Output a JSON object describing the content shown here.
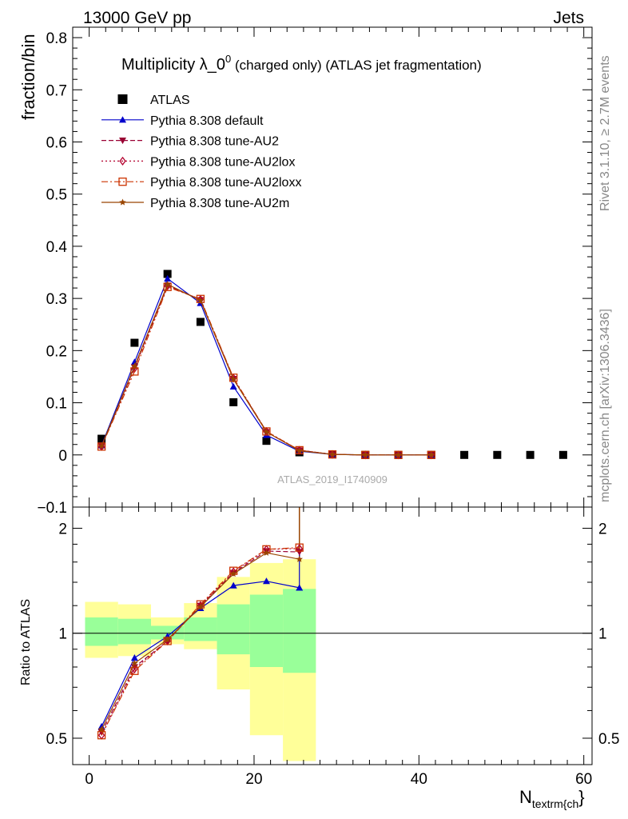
{
  "header": {
    "left": "13000 GeV pp",
    "right": "Jets"
  },
  "side_labels": {
    "rivet": "Rivet 3.1.10, ≥ 2.7M events",
    "mcplots": "mcplots.cern.ch [arXiv:1306.3436]"
  },
  "chart_data": [
    {
      "type": "scatter",
      "title_main": "Multiplicity λ_0",
      "title_sup": "0",
      "title_rest": " (charged only) (ATLAS jet fragmentation)",
      "ylabel": "fraction/bin",
      "xlabel_main": "N",
      "xlabel_sub": "textrm{ch",
      "xlabel_end": "}",
      "watermark": "ATLAS_2019_I1740909",
      "xlim": [
        -2,
        61
      ],
      "ylim": [
        -0.1,
        0.82
      ],
      "yticks": [
        -0.1,
        0,
        0.1,
        0.2,
        0.3,
        0.4,
        0.5,
        0.6,
        0.7,
        0.8
      ],
      "ytick_labels": [
        "−0.1",
        "0",
        "0.1",
        "0.2",
        "0.3",
        "0.4",
        "0.5",
        "0.6",
        "0.7",
        "0.8"
      ],
      "grid": false,
      "legend_position": "top-left",
      "series": [
        {
          "name": "ATLAS",
          "color": "#000000",
          "marker": "square",
          "line": "none",
          "x": [
            1.5,
            5.5,
            9.5,
            13.5,
            17.5,
            21.5,
            25.5,
            29.5,
            33.5,
            37.5,
            41.5,
            45.5,
            49.5,
            53.5,
            57.5
          ],
          "y": [
            0.031,
            0.215,
            0.347,
            0.255,
            0.101,
            0.027,
            0.005,
            0.001,
            0.0,
            0.0,
            0.0,
            0.0,
            0.0,
            0.0,
            0.0
          ]
        },
        {
          "name": "Pythia 8.308 default",
          "color": "#0000cc",
          "marker": "triangle-up",
          "line": "solid",
          "x": [
            1.5,
            5.5,
            9.5,
            13.5,
            17.5,
            21.5,
            25.5,
            29.5,
            33.5,
            37.5,
            41.5
          ],
          "y": [
            0.018,
            0.178,
            0.338,
            0.291,
            0.131,
            0.038,
            0.007,
            0.001,
            0.0,
            0.0,
            0.0
          ]
        },
        {
          "name": "Pythia 8.308 tune-AU2",
          "color": "#990033",
          "marker": "triangle-down",
          "line": "dashed",
          "x": [
            1.5,
            5.5,
            9.5,
            13.5,
            17.5,
            21.5,
            25.5,
            29.5,
            33.5,
            37.5,
            41.5
          ],
          "y": [
            0.017,
            0.168,
            0.325,
            0.297,
            0.146,
            0.044,
            0.009,
            0.001,
            0.0,
            0.0,
            0.0
          ]
        },
        {
          "name": "Pythia 8.308 tune-AU2lox",
          "color": "#b3002d",
          "marker": "diamond-open",
          "line": "dotted",
          "x": [
            1.5,
            5.5,
            9.5,
            13.5,
            17.5,
            21.5,
            25.5,
            29.5,
            33.5,
            37.5,
            41.5
          ],
          "y": [
            0.016,
            0.166,
            0.324,
            0.298,
            0.147,
            0.045,
            0.009,
            0.001,
            0.0,
            0.0,
            0.0
          ]
        },
        {
          "name": "Pythia 8.308 tune-AU2loxx",
          "color": "#cc3300",
          "marker": "square-open",
          "line": "dashdot",
          "x": [
            1.5,
            5.5,
            9.5,
            13.5,
            17.5,
            21.5,
            25.5,
            29.5,
            33.5,
            37.5,
            41.5
          ],
          "y": [
            0.016,
            0.16,
            0.322,
            0.299,
            0.148,
            0.045,
            0.009,
            0.001,
            0.0,
            0.0,
            0.0
          ]
        },
        {
          "name": "Pythia 8.308 tune-AU2m",
          "color": "#994400",
          "marker": "star",
          "line": "solid",
          "x": [
            1.5,
            5.5,
            9.5,
            13.5,
            17.5,
            21.5,
            25.5,
            29.5,
            33.5,
            37.5,
            41.5
          ],
          "y": [
            0.017,
            0.17,
            0.327,
            0.296,
            0.145,
            0.044,
            0.008,
            0.001,
            0.0,
            0.0,
            0.0
          ]
        }
      ]
    },
    {
      "type": "line",
      "ylabel": "Ratio to ATLAS",
      "scale": "log",
      "xlim": [
        -2,
        61
      ],
      "ylim": [
        0.42,
        2.3
      ],
      "yticks": [
        0.5,
        1,
        2
      ],
      "ytick_labels": [
        "0.5",
        "1",
        "2"
      ],
      "xticks": [
        0,
        20,
        40,
        60
      ],
      "xtick_labels": [
        "0",
        "20",
        "40",
        "60"
      ],
      "reference_line": 1,
      "bands": {
        "edges": [
          -0.5,
          3.5,
          7.5,
          11.5,
          15.5,
          19.5,
          23.5,
          27.5
        ],
        "yellow_low": [
          0.85,
          0.86,
          0.93,
          0.9,
          0.69,
          0.51,
          0.43
        ],
        "yellow_high": [
          1.23,
          1.21,
          1.11,
          1.22,
          1.45,
          1.59,
          1.63
        ],
        "green_low": [
          0.92,
          0.93,
          0.96,
          0.95,
          0.87,
          0.8,
          0.77
        ],
        "green_high": [
          1.11,
          1.1,
          1.05,
          1.11,
          1.21,
          1.29,
          1.34
        ],
        "yellow_color": "#ffff99",
        "green_color": "#99ff99"
      },
      "series": [
        {
          "name": "Pythia 8.308 default",
          "color": "#0000cc",
          "x": [
            1.5,
            5.5,
            9.5,
            13.5,
            17.5,
            21.5,
            25.5
          ],
          "y": [
            0.54,
            0.85,
            0.98,
            1.18,
            1.37,
            1.41,
            1.35
          ]
        },
        {
          "name": "Pythia 8.308 tune-AU2",
          "color": "#990033",
          "x": [
            1.5,
            5.5,
            9.5,
            13.5,
            17.5,
            21.5,
            25.5
          ],
          "y": [
            0.52,
            0.8,
            0.95,
            1.2,
            1.49,
            1.72,
            1.71
          ]
        },
        {
          "name": "Pythia 8.308 tune-AU2lox",
          "color": "#b3002d",
          "x": [
            1.5,
            5.5,
            9.5,
            13.5,
            17.5,
            21.5,
            25.5
          ],
          "y": [
            0.51,
            0.79,
            0.95,
            1.2,
            1.5,
            1.74,
            1.75
          ]
        },
        {
          "name": "Pythia 8.308 tune-AU2loxx",
          "color": "#cc3300",
          "x": [
            1.5,
            5.5,
            9.5,
            13.5,
            17.5,
            21.5,
            25.5
          ],
          "y": [
            0.51,
            0.78,
            0.95,
            1.21,
            1.51,
            1.74,
            1.76
          ]
        },
        {
          "name": "Pythia 8.308 tune-AU2m",
          "color": "#994400",
          "x": [
            1.5,
            5.5,
            9.5,
            13.5,
            17.5,
            21.5,
            25.5
          ],
          "y": [
            0.53,
            0.82,
            0.96,
            1.19,
            1.48,
            1.7,
            1.63
          ]
        }
      ]
    }
  ]
}
